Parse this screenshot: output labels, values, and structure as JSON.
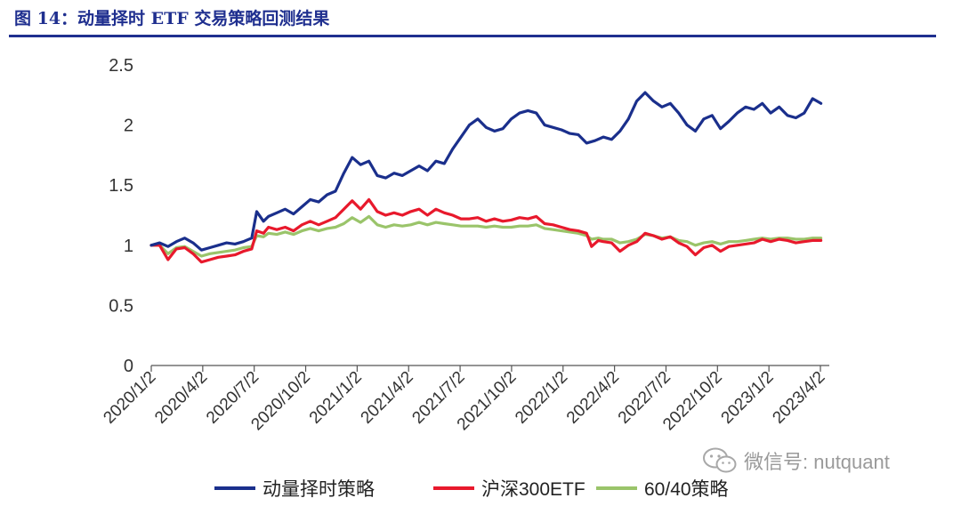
{
  "figure_title": "图 14：动量择时 ETF 交易策略回测结果",
  "watermark": "微信号: nutquant",
  "colors": {
    "title": "#1f2f8f",
    "momentum": "#1a2f8c",
    "csi300": "#e8192c",
    "balanced": "#9ac46a"
  },
  "chart_data": {
    "type": "line",
    "title": "动量择时 ETF 交易策略回测结果",
    "xlabel": "",
    "ylabel": "",
    "ylim": [
      0,
      2.5
    ],
    "yticks": [
      "0",
      "0.5",
      "1",
      "1.5",
      "2",
      "2.5"
    ],
    "ytick_values": [
      0,
      0.5,
      1,
      1.5,
      2,
      2.5
    ],
    "xticks": [
      "2020/1/2",
      "2020/4/2",
      "2020/7/2",
      "2020/10/2",
      "2021/1/2",
      "2021/4/2",
      "2021/7/2",
      "2021/10/2",
      "2022/1/2",
      "2022/4/2",
      "2022/7/2",
      "2022/10/2",
      "2023/1/2",
      "2023/4/2"
    ],
    "xlim": [
      0,
      40.5
    ],
    "legend_position": "bottom",
    "grid": false,
    "series": [
      {
        "name": "动量择时策略",
        "color": "#1a2f8c",
        "points": [
          [
            0,
            1.0
          ],
          [
            0.5,
            1.02
          ],
          [
            1,
            0.99
          ],
          [
            1.5,
            1.03
          ],
          [
            2,
            1.06
          ],
          [
            2.5,
            1.02
          ],
          [
            3,
            0.96
          ],
          [
            3.5,
            0.98
          ],
          [
            4,
            1.0
          ],
          [
            4.5,
            1.02
          ],
          [
            5,
            1.01
          ],
          [
            5.5,
            1.03
          ],
          [
            6,
            1.06
          ],
          [
            6.3,
            1.28
          ],
          [
            6.7,
            1.2
          ],
          [
            7,
            1.24
          ],
          [
            7.5,
            1.27
          ],
          [
            8,
            1.3
          ],
          [
            8.5,
            1.26
          ],
          [
            9,
            1.32
          ],
          [
            9.5,
            1.38
          ],
          [
            10,
            1.36
          ],
          [
            10.5,
            1.42
          ],
          [
            11,
            1.45
          ],
          [
            11.5,
            1.6
          ],
          [
            12,
            1.73
          ],
          [
            12.5,
            1.67
          ],
          [
            13,
            1.7
          ],
          [
            13.5,
            1.58
          ],
          [
            14,
            1.56
          ],
          [
            14.5,
            1.6
          ],
          [
            15,
            1.58
          ],
          [
            15.5,
            1.62
          ],
          [
            16,
            1.66
          ],
          [
            16.5,
            1.62
          ],
          [
            17,
            1.7
          ],
          [
            17.5,
            1.68
          ],
          [
            18,
            1.8
          ],
          [
            18.5,
            1.9
          ],
          [
            19,
            2.0
          ],
          [
            19.5,
            2.05
          ],
          [
            20,
            1.98
          ],
          [
            20.5,
            1.95
          ],
          [
            21,
            1.97
          ],
          [
            21.5,
            2.05
          ],
          [
            22,
            2.1
          ],
          [
            22.5,
            2.12
          ],
          [
            23,
            2.1
          ],
          [
            23.5,
            2.0
          ],
          [
            24,
            1.98
          ],
          [
            24.5,
            1.96
          ],
          [
            25,
            1.93
          ],
          [
            25.5,
            1.92
          ],
          [
            26,
            1.85
          ],
          [
            26.5,
            1.87
          ],
          [
            27,
            1.9
          ],
          [
            27.5,
            1.88
          ],
          [
            28,
            1.95
          ],
          [
            28.5,
            2.05
          ],
          [
            29,
            2.2
          ],
          [
            29.5,
            2.27
          ],
          [
            30,
            2.2
          ],
          [
            30.5,
            2.15
          ],
          [
            31,
            2.18
          ],
          [
            31.5,
            2.1
          ],
          [
            32,
            2.0
          ],
          [
            32.5,
            1.95
          ],
          [
            33,
            2.05
          ],
          [
            33.5,
            2.08
          ],
          [
            34,
            1.97
          ],
          [
            34.5,
            2.03
          ],
          [
            35,
            2.1
          ],
          [
            35.5,
            2.15
          ],
          [
            36,
            2.13
          ],
          [
            36.5,
            2.18
          ],
          [
            37,
            2.1
          ],
          [
            37.5,
            2.15
          ],
          [
            38,
            2.08
          ],
          [
            38.5,
            2.06
          ],
          [
            39,
            2.1
          ],
          [
            39.5,
            2.22
          ],
          [
            40,
            2.18
          ]
        ]
      },
      {
        "name": "沪深300ETF",
        "color": "#e8192c",
        "points": [
          [
            0,
            1.0
          ],
          [
            0.5,
            1.0
          ],
          [
            1,
            0.88
          ],
          [
            1.5,
            0.97
          ],
          [
            2,
            0.98
          ],
          [
            2.5,
            0.93
          ],
          [
            3,
            0.86
          ],
          [
            3.5,
            0.88
          ],
          [
            4,
            0.9
          ],
          [
            4.5,
            0.91
          ],
          [
            5,
            0.92
          ],
          [
            5.5,
            0.95
          ],
          [
            6,
            0.97
          ],
          [
            6.3,
            1.12
          ],
          [
            6.7,
            1.1
          ],
          [
            7,
            1.15
          ],
          [
            7.5,
            1.13
          ],
          [
            8,
            1.15
          ],
          [
            8.5,
            1.12
          ],
          [
            9,
            1.17
          ],
          [
            9.5,
            1.2
          ],
          [
            10,
            1.17
          ],
          [
            10.5,
            1.2
          ],
          [
            11,
            1.23
          ],
          [
            11.5,
            1.3
          ],
          [
            12,
            1.37
          ],
          [
            12.5,
            1.3
          ],
          [
            13,
            1.38
          ],
          [
            13.5,
            1.28
          ],
          [
            14,
            1.25
          ],
          [
            14.5,
            1.27
          ],
          [
            15,
            1.25
          ],
          [
            15.5,
            1.28
          ],
          [
            16,
            1.3
          ],
          [
            16.5,
            1.25
          ],
          [
            17,
            1.3
          ],
          [
            17.5,
            1.27
          ],
          [
            18,
            1.25
          ],
          [
            18.5,
            1.22
          ],
          [
            19,
            1.22
          ],
          [
            19.5,
            1.23
          ],
          [
            20,
            1.2
          ],
          [
            20.5,
            1.22
          ],
          [
            21,
            1.2
          ],
          [
            21.5,
            1.21
          ],
          [
            22,
            1.23
          ],
          [
            22.5,
            1.22
          ],
          [
            23,
            1.24
          ],
          [
            23.5,
            1.18
          ],
          [
            24,
            1.17
          ],
          [
            24.5,
            1.15
          ],
          [
            25,
            1.13
          ],
          [
            25.5,
            1.12
          ],
          [
            26,
            1.1
          ],
          [
            26.3,
            0.99
          ],
          [
            26.7,
            1.04
          ],
          [
            27,
            1.03
          ],
          [
            27.5,
            1.02
          ],
          [
            28,
            0.95
          ],
          [
            28.5,
            1.0
          ],
          [
            29,
            1.03
          ],
          [
            29.5,
            1.1
          ],
          [
            30,
            1.08
          ],
          [
            30.5,
            1.05
          ],
          [
            31,
            1.07
          ],
          [
            31.5,
            1.02
          ],
          [
            32,
            0.99
          ],
          [
            32.5,
            0.92
          ],
          [
            33,
            0.98
          ],
          [
            33.5,
            1.0
          ],
          [
            34,
            0.95
          ],
          [
            34.5,
            0.99
          ],
          [
            35,
            1.0
          ],
          [
            35.5,
            1.01
          ],
          [
            36,
            1.02
          ],
          [
            36.5,
            1.05
          ],
          [
            37,
            1.03
          ],
          [
            37.5,
            1.05
          ],
          [
            38,
            1.04
          ],
          [
            38.5,
            1.02
          ],
          [
            39,
            1.03
          ],
          [
            39.5,
            1.04
          ],
          [
            40,
            1.04
          ]
        ]
      },
      {
        "name": "60/40策略",
        "color": "#9ac46a",
        "points": [
          [
            0,
            1.0
          ],
          [
            0.5,
            1.0
          ],
          [
            1,
            0.93
          ],
          [
            1.5,
            0.98
          ],
          [
            2,
            0.99
          ],
          [
            2.5,
            0.95
          ],
          [
            3,
            0.91
          ],
          [
            3.5,
            0.93
          ],
          [
            4,
            0.94
          ],
          [
            4.5,
            0.95
          ],
          [
            5,
            0.96
          ],
          [
            5.5,
            0.98
          ],
          [
            6,
            0.99
          ],
          [
            6.3,
            1.08
          ],
          [
            6.7,
            1.07
          ],
          [
            7,
            1.1
          ],
          [
            7.5,
            1.09
          ],
          [
            8,
            1.11
          ],
          [
            8.5,
            1.09
          ],
          [
            9,
            1.12
          ],
          [
            9.5,
            1.14
          ],
          [
            10,
            1.12
          ],
          [
            10.5,
            1.14
          ],
          [
            11,
            1.15
          ],
          [
            11.5,
            1.18
          ],
          [
            12,
            1.23
          ],
          [
            12.5,
            1.19
          ],
          [
            13,
            1.24
          ],
          [
            13.5,
            1.17
          ],
          [
            14,
            1.15
          ],
          [
            14.5,
            1.17
          ],
          [
            15,
            1.16
          ],
          [
            15.5,
            1.17
          ],
          [
            16,
            1.19
          ],
          [
            16.5,
            1.17
          ],
          [
            17,
            1.19
          ],
          [
            17.5,
            1.18
          ],
          [
            18,
            1.17
          ],
          [
            18.5,
            1.16
          ],
          [
            19,
            1.16
          ],
          [
            19.5,
            1.16
          ],
          [
            20,
            1.15
          ],
          [
            20.5,
            1.16
          ],
          [
            21,
            1.15
          ],
          [
            21.5,
            1.15
          ],
          [
            22,
            1.16
          ],
          [
            22.5,
            1.16
          ],
          [
            23,
            1.17
          ],
          [
            23.5,
            1.14
          ],
          [
            24,
            1.13
          ],
          [
            24.5,
            1.12
          ],
          [
            25,
            1.11
          ],
          [
            25.5,
            1.1
          ],
          [
            26,
            1.08
          ],
          [
            26.3,
            1.05
          ],
          [
            26.7,
            1.06
          ],
          [
            27,
            1.05
          ],
          [
            27.5,
            1.05
          ],
          [
            28,
            1.02
          ],
          [
            28.5,
            1.03
          ],
          [
            29,
            1.05
          ],
          [
            29.5,
            1.09
          ],
          [
            30,
            1.08
          ],
          [
            30.5,
            1.06
          ],
          [
            31,
            1.07
          ],
          [
            31.5,
            1.04
          ],
          [
            32,
            1.03
          ],
          [
            32.5,
            1.0
          ],
          [
            33,
            1.02
          ],
          [
            33.5,
            1.03
          ],
          [
            34,
            1.01
          ],
          [
            34.5,
            1.03
          ],
          [
            35,
            1.03
          ],
          [
            35.5,
            1.04
          ],
          [
            36,
            1.05
          ],
          [
            36.5,
            1.06
          ],
          [
            37,
            1.05
          ],
          [
            37.5,
            1.06
          ],
          [
            38,
            1.06
          ],
          [
            38.5,
            1.05
          ],
          [
            39,
            1.05
          ],
          [
            39.5,
            1.06
          ],
          [
            40,
            1.06
          ]
        ]
      }
    ]
  }
}
